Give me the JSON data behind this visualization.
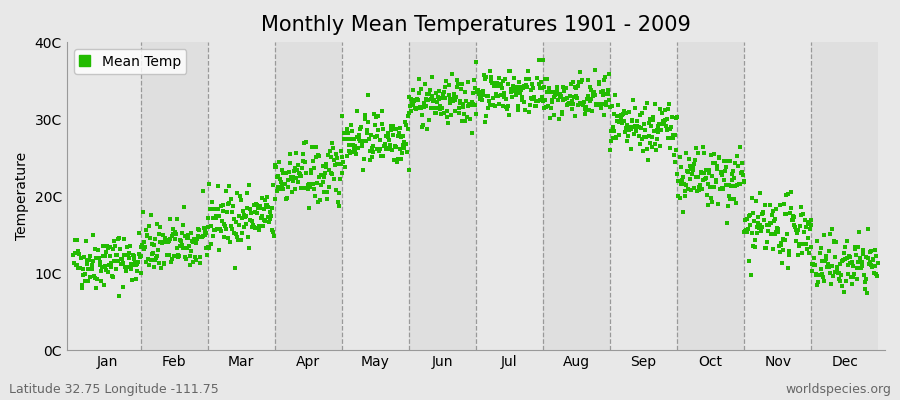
{
  "title": "Monthly Mean Temperatures 1901 - 2009",
  "ylabel": "Temperature",
  "ylim": [
    0,
    40
  ],
  "yticks": [
    0,
    10,
    20,
    30,
    40
  ],
  "ytick_labels": [
    "0C",
    "10C",
    "20C",
    "30C",
    "40C"
  ],
  "months": [
    "Jan",
    "Feb",
    "Mar",
    "Apr",
    "May",
    "Jun",
    "Jul",
    "Aug",
    "Sep",
    "Oct",
    "Nov",
    "Dec"
  ],
  "month_mean_temps": [
    11.5,
    13.5,
    17.0,
    22.5,
    27.5,
    32.0,
    33.5,
    32.5,
    28.5,
    22.0,
    15.5,
    11.0
  ],
  "month_std_temps": [
    1.8,
    1.8,
    2.0,
    2.0,
    1.8,
    1.5,
    1.5,
    1.5,
    1.8,
    2.0,
    2.0,
    1.8
  ],
  "n_years": 109,
  "dot_color": "#22bb00",
  "dot_size": 12,
  "dot_marker": "s",
  "background_color": "#e8e8e8",
  "plot_bg_color": "#e8e8e8",
  "grid_color": "#999999",
  "legend_label": "Mean Temp",
  "footnote_left": "Latitude 32.75 Longitude -111.75",
  "footnote_right": "worldspecies.org",
  "title_fontsize": 15,
  "axis_fontsize": 10,
  "tick_fontsize": 10,
  "footnote_fontsize": 9,
  "figsize": [
    9.0,
    4.0
  ],
  "dpi": 100
}
